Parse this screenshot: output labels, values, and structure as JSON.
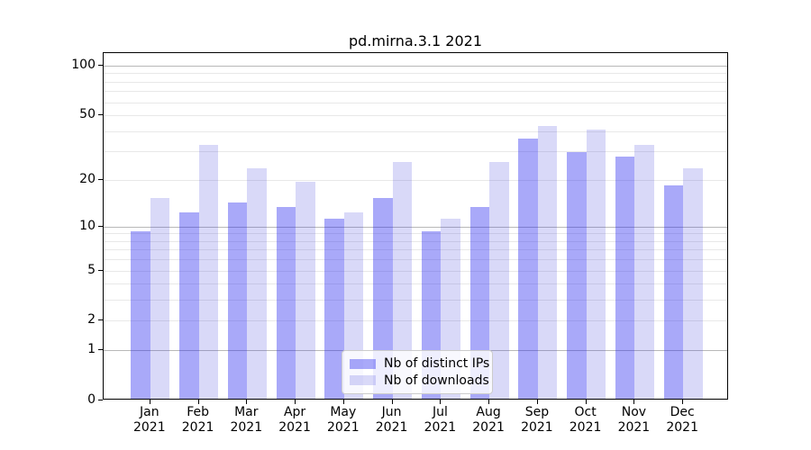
{
  "chart_data": {
    "type": "bar",
    "title": "pd.mirna.3.1 2021",
    "categories": [
      "Jan",
      "Feb",
      "Mar",
      "Apr",
      "May",
      "Jun",
      "Jul",
      "Aug",
      "Sep",
      "Oct",
      "Nov",
      "Dec"
    ],
    "year_label": "2021",
    "series": [
      {
        "name": "Nb of distinct IPs",
        "color": "#a9a9f9",
        "values": [
          9,
          12,
          14,
          13,
          11,
          15,
          9,
          13,
          35,
          29,
          27,
          18
        ]
      },
      {
        "name": "Nb of downloads",
        "color": "#d9d9f8",
        "values": [
          15,
          32,
          23,
          19,
          12,
          25,
          11,
          25,
          42,
          40,
          32,
          23
        ]
      }
    ],
    "y_axis": {
      "scale": "log1p",
      "tick_values": [
        0,
        1,
        2,
        5,
        10,
        20,
        50,
        100
      ],
      "tick_labels": [
        "0",
        "1",
        "2",
        "5",
        "10",
        "20",
        "50",
        "100"
      ],
      "dark_gridlines": [
        1,
        10,
        100
      ],
      "light_gridlines": [
        2,
        5,
        20,
        50
      ],
      "minor_gridlines": [
        3,
        4,
        6,
        7,
        8,
        9,
        30,
        40,
        60,
        70,
        80,
        90
      ],
      "ylim": [
        0,
        119
      ]
    },
    "xlabel": "",
    "ylabel": "",
    "grid": true,
    "legend_position": "lower center inside plot"
  }
}
